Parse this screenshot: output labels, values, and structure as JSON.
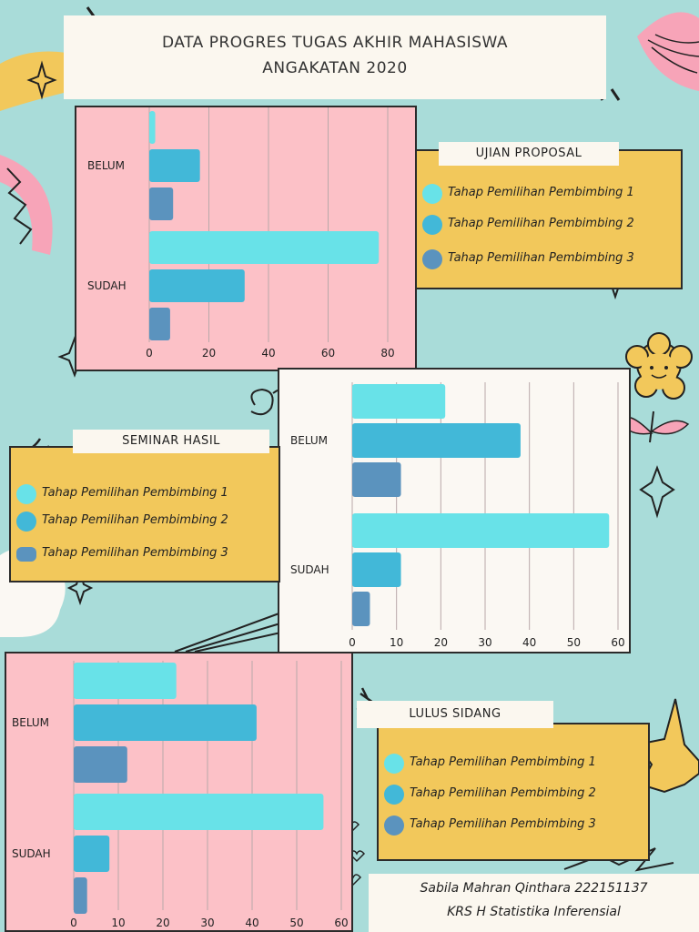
{
  "header": {
    "title_line1": "DATA PROGRES TUGAS AKHIR MAHASISWA",
    "title_line2": "ANGAKATAN 2020"
  },
  "colors": {
    "series1": "#68e2e8",
    "series2": "#42b8d8",
    "series3": "#5b93be",
    "legend_bg": "#f2c85b",
    "pink_panel": "#fcc1c7",
    "white_panel": "#fbf8f3"
  },
  "legends": {
    "proposal": {
      "heading": "UJIAN PROPOSAL",
      "items": [
        "Tahap Pemilihan Pembimbing 1",
        "Tahap Pemilihan Pembimbing 2",
        "Tahap Pemilihan Pembimbing 3"
      ]
    },
    "seminar": {
      "heading": "SEMINAR HASIL",
      "items": [
        "Tahap Pemilihan Pembimbing 1",
        "Tahap Pemilihan Pembimbing 2",
        "Tahap Pemilihan Pembimbing 3"
      ]
    },
    "lulus": {
      "heading": "LULUS SIDANG",
      "items": [
        "Tahap Pemilihan Pembimbing 1",
        "Tahap Pemilihan Pembimbing 2",
        "Tahap Pemilihan Pembimbing 3"
      ]
    }
  },
  "footer": {
    "line1": "Sabila Mahran Qinthara 222151137",
    "line2": "KRS H Statistika Inferensial"
  },
  "chart_data": [
    {
      "type": "bar",
      "orientation": "horizontal",
      "categories": [
        "BELUM",
        "SUDAH"
      ],
      "series": [
        {
          "name": "Tahap Pemilihan Pembimbing 1",
          "values": [
            2,
            77
          ]
        },
        {
          "name": "Tahap Pemilihan Pembimbing 2",
          "values": [
            17,
            32
          ]
        },
        {
          "name": "Tahap Pemilihan Pembimbing 3",
          "values": [
            8,
            7
          ]
        }
      ],
      "xlim": [
        0,
        80
      ],
      "xticks": [
        0,
        20,
        40,
        60,
        80
      ],
      "grid": true
    },
    {
      "type": "bar",
      "orientation": "horizontal",
      "categories": [
        "BELUM",
        "SUDAH"
      ],
      "series": [
        {
          "name": "Tahap Pemilihan Pembimbing 1",
          "values": [
            21,
            58
          ]
        },
        {
          "name": "Tahap Pemilihan Pembimbing 2",
          "values": [
            38,
            11
          ]
        },
        {
          "name": "Tahap Pemilihan Pembimbing 3",
          "values": [
            11,
            4
          ]
        }
      ],
      "xlim": [
        0,
        60
      ],
      "xticks": [
        0,
        10,
        20,
        30,
        40,
        50,
        60
      ],
      "grid": true
    },
    {
      "type": "bar",
      "orientation": "horizontal",
      "categories": [
        "BELUM",
        "SUDAH"
      ],
      "series": [
        {
          "name": "Tahap Pemilihan Pembimbing 1",
          "values": [
            23,
            56
          ]
        },
        {
          "name": "Tahap Pemilihan Pembimbing 2",
          "values": [
            41,
            8
          ]
        },
        {
          "name": "Tahap Pemilihan Pembimbing 3",
          "values": [
            12,
            3
          ]
        }
      ],
      "xlim": [
        0,
        60
      ],
      "xticks": [
        0,
        10,
        20,
        30,
        40,
        50,
        60
      ],
      "grid": true
    }
  ]
}
